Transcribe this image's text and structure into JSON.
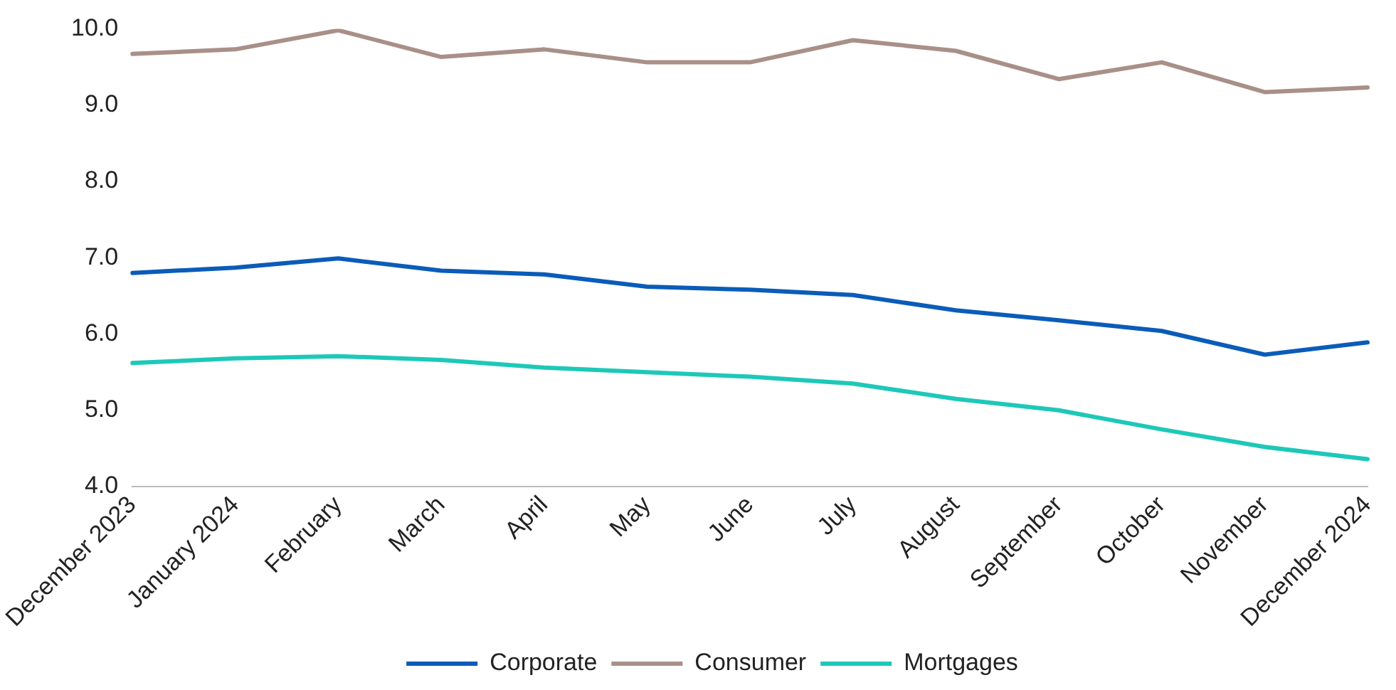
{
  "chart_data": {
    "type": "line",
    "categories": [
      "December 2023",
      "January 2024",
      "February",
      "March",
      "April",
      "May",
      "June",
      "July",
      "August",
      "September",
      "October",
      "November",
      "December 2024"
    ],
    "series": [
      {
        "name": "Corporate",
        "color": "#0a5cb8",
        "values": [
          6.8,
          6.87,
          6.99,
          6.83,
          6.78,
          6.62,
          6.58,
          6.51,
          6.31,
          6.18,
          6.04,
          5.73,
          5.89
        ]
      },
      {
        "name": "Consumer",
        "color": "#a89088",
        "values": [
          9.67,
          9.73,
          9.98,
          9.63,
          9.73,
          9.56,
          9.56,
          9.85,
          9.71,
          9.34,
          9.56,
          9.17,
          9.23
        ]
      },
      {
        "name": "Mortgages",
        "color": "#1ec8b8",
        "values": [
          5.62,
          5.68,
          5.71,
          5.66,
          5.56,
          5.5,
          5.44,
          5.35,
          5.15,
          5.0,
          4.75,
          4.52,
          4.36
        ]
      }
    ],
    "ylim": [
      4,
      10
    ],
    "yticks": [
      {
        "value": 4,
        "label": "4.0"
      },
      {
        "value": 5,
        "label": "5.0"
      },
      {
        "value": 6,
        "label": "6.0"
      },
      {
        "value": 7,
        "label": "7.0"
      },
      {
        "value": 8,
        "label": "8.0"
      },
      {
        "value": 9,
        "label": "9.0"
      },
      {
        "value": 10,
        "label": "10.0"
      }
    ],
    "grid": false,
    "legend": "bottom",
    "marker": "none",
    "line_style": "solid"
  }
}
